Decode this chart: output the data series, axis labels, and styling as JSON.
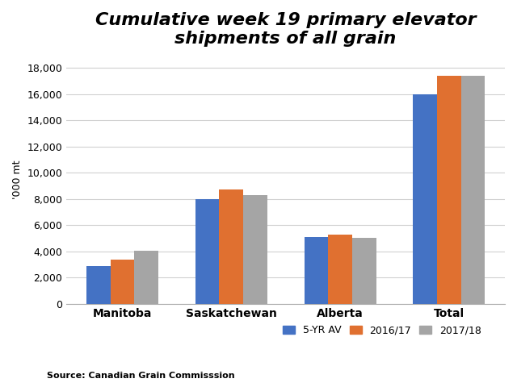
{
  "title": "Cumulative week 19 primary elevator\nshipments of all grain",
  "categories": [
    "Manitoba",
    "Saskatchewan",
    "Alberta",
    "Total"
  ],
  "series": {
    "5-YR AV": [
      2900,
      8000,
      5100,
      16000
    ],
    "2016/17": [
      3350,
      8750,
      5250,
      17400
    ],
    "2017/18": [
      4050,
      8300,
      5050,
      17400
    ]
  },
  "colors": {
    "5-YR AV": "#4472C4",
    "2016/17": "#E07030",
    "2017/18": "#A5A5A5"
  },
  "ylabel": "'000 mt",
  "ylim": [
    0,
    19000
  ],
  "yticks": [
    0,
    2000,
    4000,
    6000,
    8000,
    10000,
    12000,
    14000,
    16000,
    18000
  ],
  "source_text": "Source: Canadian Grain Commisssion",
  "legend_labels": [
    "5-YR AV",
    "2016/17",
    "2017/18"
  ],
  "background_color": "#FFFFFF",
  "title_fontsize": 16,
  "title_style": "italic",
  "title_weight": "bold",
  "bar_width": 0.22
}
